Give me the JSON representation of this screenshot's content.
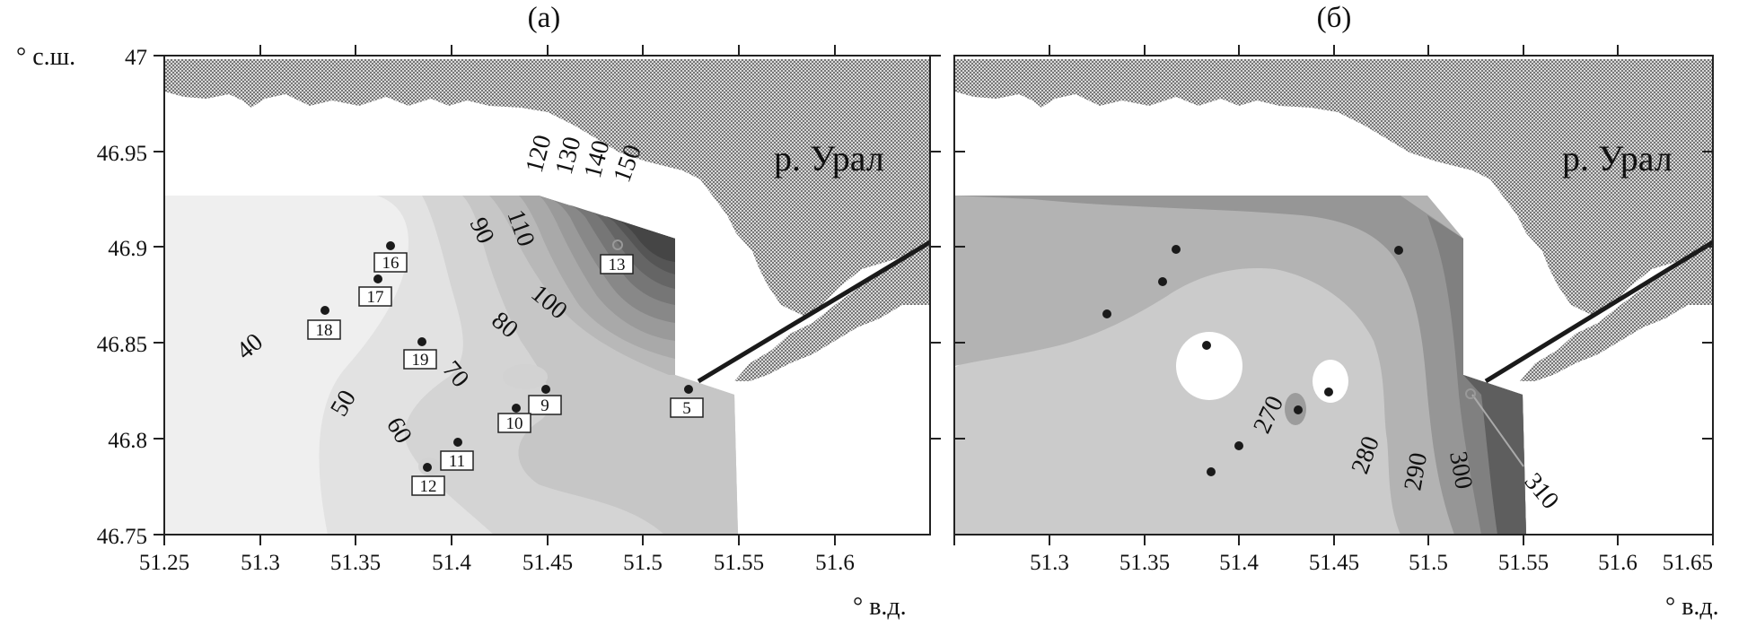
{
  "panels": [
    {
      "title": "(а)",
      "river_label": "р. Урал",
      "contour_labels": [
        "40",
        "50",
        "60",
        "70",
        "80",
        "90",
        "100",
        "110",
        "120",
        "130",
        "140",
        "150"
      ],
      "stations": [
        "5",
        "9",
        "10",
        "11",
        "12",
        "13",
        "16",
        "17",
        "18",
        "19"
      ]
    },
    {
      "title": "(б)",
      "river_label": "р. Урал",
      "contour_labels": [
        "270",
        "280",
        "290",
        "300",
        "310"
      ]
    }
  ],
  "axes": {
    "y_label": "° с.ш.",
    "x_label": "° в.д.",
    "y_ticks": [
      "47",
      "46.95",
      "46.9",
      "46.85",
      "46.8",
      "46.75"
    ],
    "x_ticks_a": [
      "51.25",
      "51.3",
      "51.35",
      "51.4",
      "51.45",
      "51.5",
      "51.55",
      "51.6"
    ],
    "x_ticks_b": [
      "51.3",
      "51.35",
      "51.4",
      "51.45",
      "51.5",
      "51.55",
      "51.6",
      "51.65"
    ],
    "xlim_a": [
      51.25,
      51.65
    ],
    "xlim_b": [
      51.25,
      51.65
    ],
    "ylim": [
      46.75,
      47.0
    ]
  },
  "chart_data": [
    {
      "type": "contour",
      "title": "(а)",
      "xlabel": "° в.д.",
      "ylabel": "° с.ш.",
      "xlim": [
        51.25,
        51.65
      ],
      "ylim": [
        46.75,
        47.0
      ],
      "contour_levels": [
        40,
        50,
        60,
        70,
        80,
        90,
        100,
        110,
        120,
        130,
        140,
        150
      ],
      "stations": [
        {
          "id": "5",
          "lon": 51.525,
          "lat": 46.827
        },
        {
          "id": "9",
          "lon": 51.448,
          "lat": 46.827
        },
        {
          "id": "10",
          "lon": 51.433,
          "lat": 46.817
        },
        {
          "id": "11",
          "lon": 51.402,
          "lat": 46.799
        },
        {
          "id": "12",
          "lon": 51.386,
          "lat": 46.786
        },
        {
          "id": "13",
          "lon": 51.487,
          "lat": 46.902
        },
        {
          "id": "16",
          "lon": 51.368,
          "lat": 46.901
        },
        {
          "id": "17",
          "lon": 51.361,
          "lat": 46.884
        },
        {
          "id": "18",
          "lon": 51.333,
          "lat": 46.867
        },
        {
          "id": "19",
          "lon": 51.384,
          "lat": 46.851
        }
      ]
    },
    {
      "type": "contour",
      "title": "(б)",
      "xlabel": "° в.д.",
      "ylabel": "",
      "xlim": [
        51.25,
        51.65
      ],
      "ylim": [
        46.75,
        47.0
      ],
      "contour_levels": [
        270,
        280,
        290,
        300,
        310
      ]
    }
  ],
  "colors": {
    "land": "#b4b4b4",
    "water": "#ffffff",
    "fill_levels": [
      "#efefef",
      "#e4e4e4",
      "#d8d8d8",
      "#cbcbcb",
      "#bdbdbd",
      "#afafaf",
      "#a0a0a0",
      "#8f8f8f",
      "#7d7d7d",
      "#6b6b6b",
      "#595959",
      "#484848"
    ],
    "fill_levels_b": [
      "#ffffff",
      "#e6e6e6",
      "#cdcdcd",
      "#b3b3b3",
      "#969696",
      "#6d6d6d"
    ],
    "marker": "#1a1a1a",
    "shipping_channel": "#1a1a1a"
  }
}
